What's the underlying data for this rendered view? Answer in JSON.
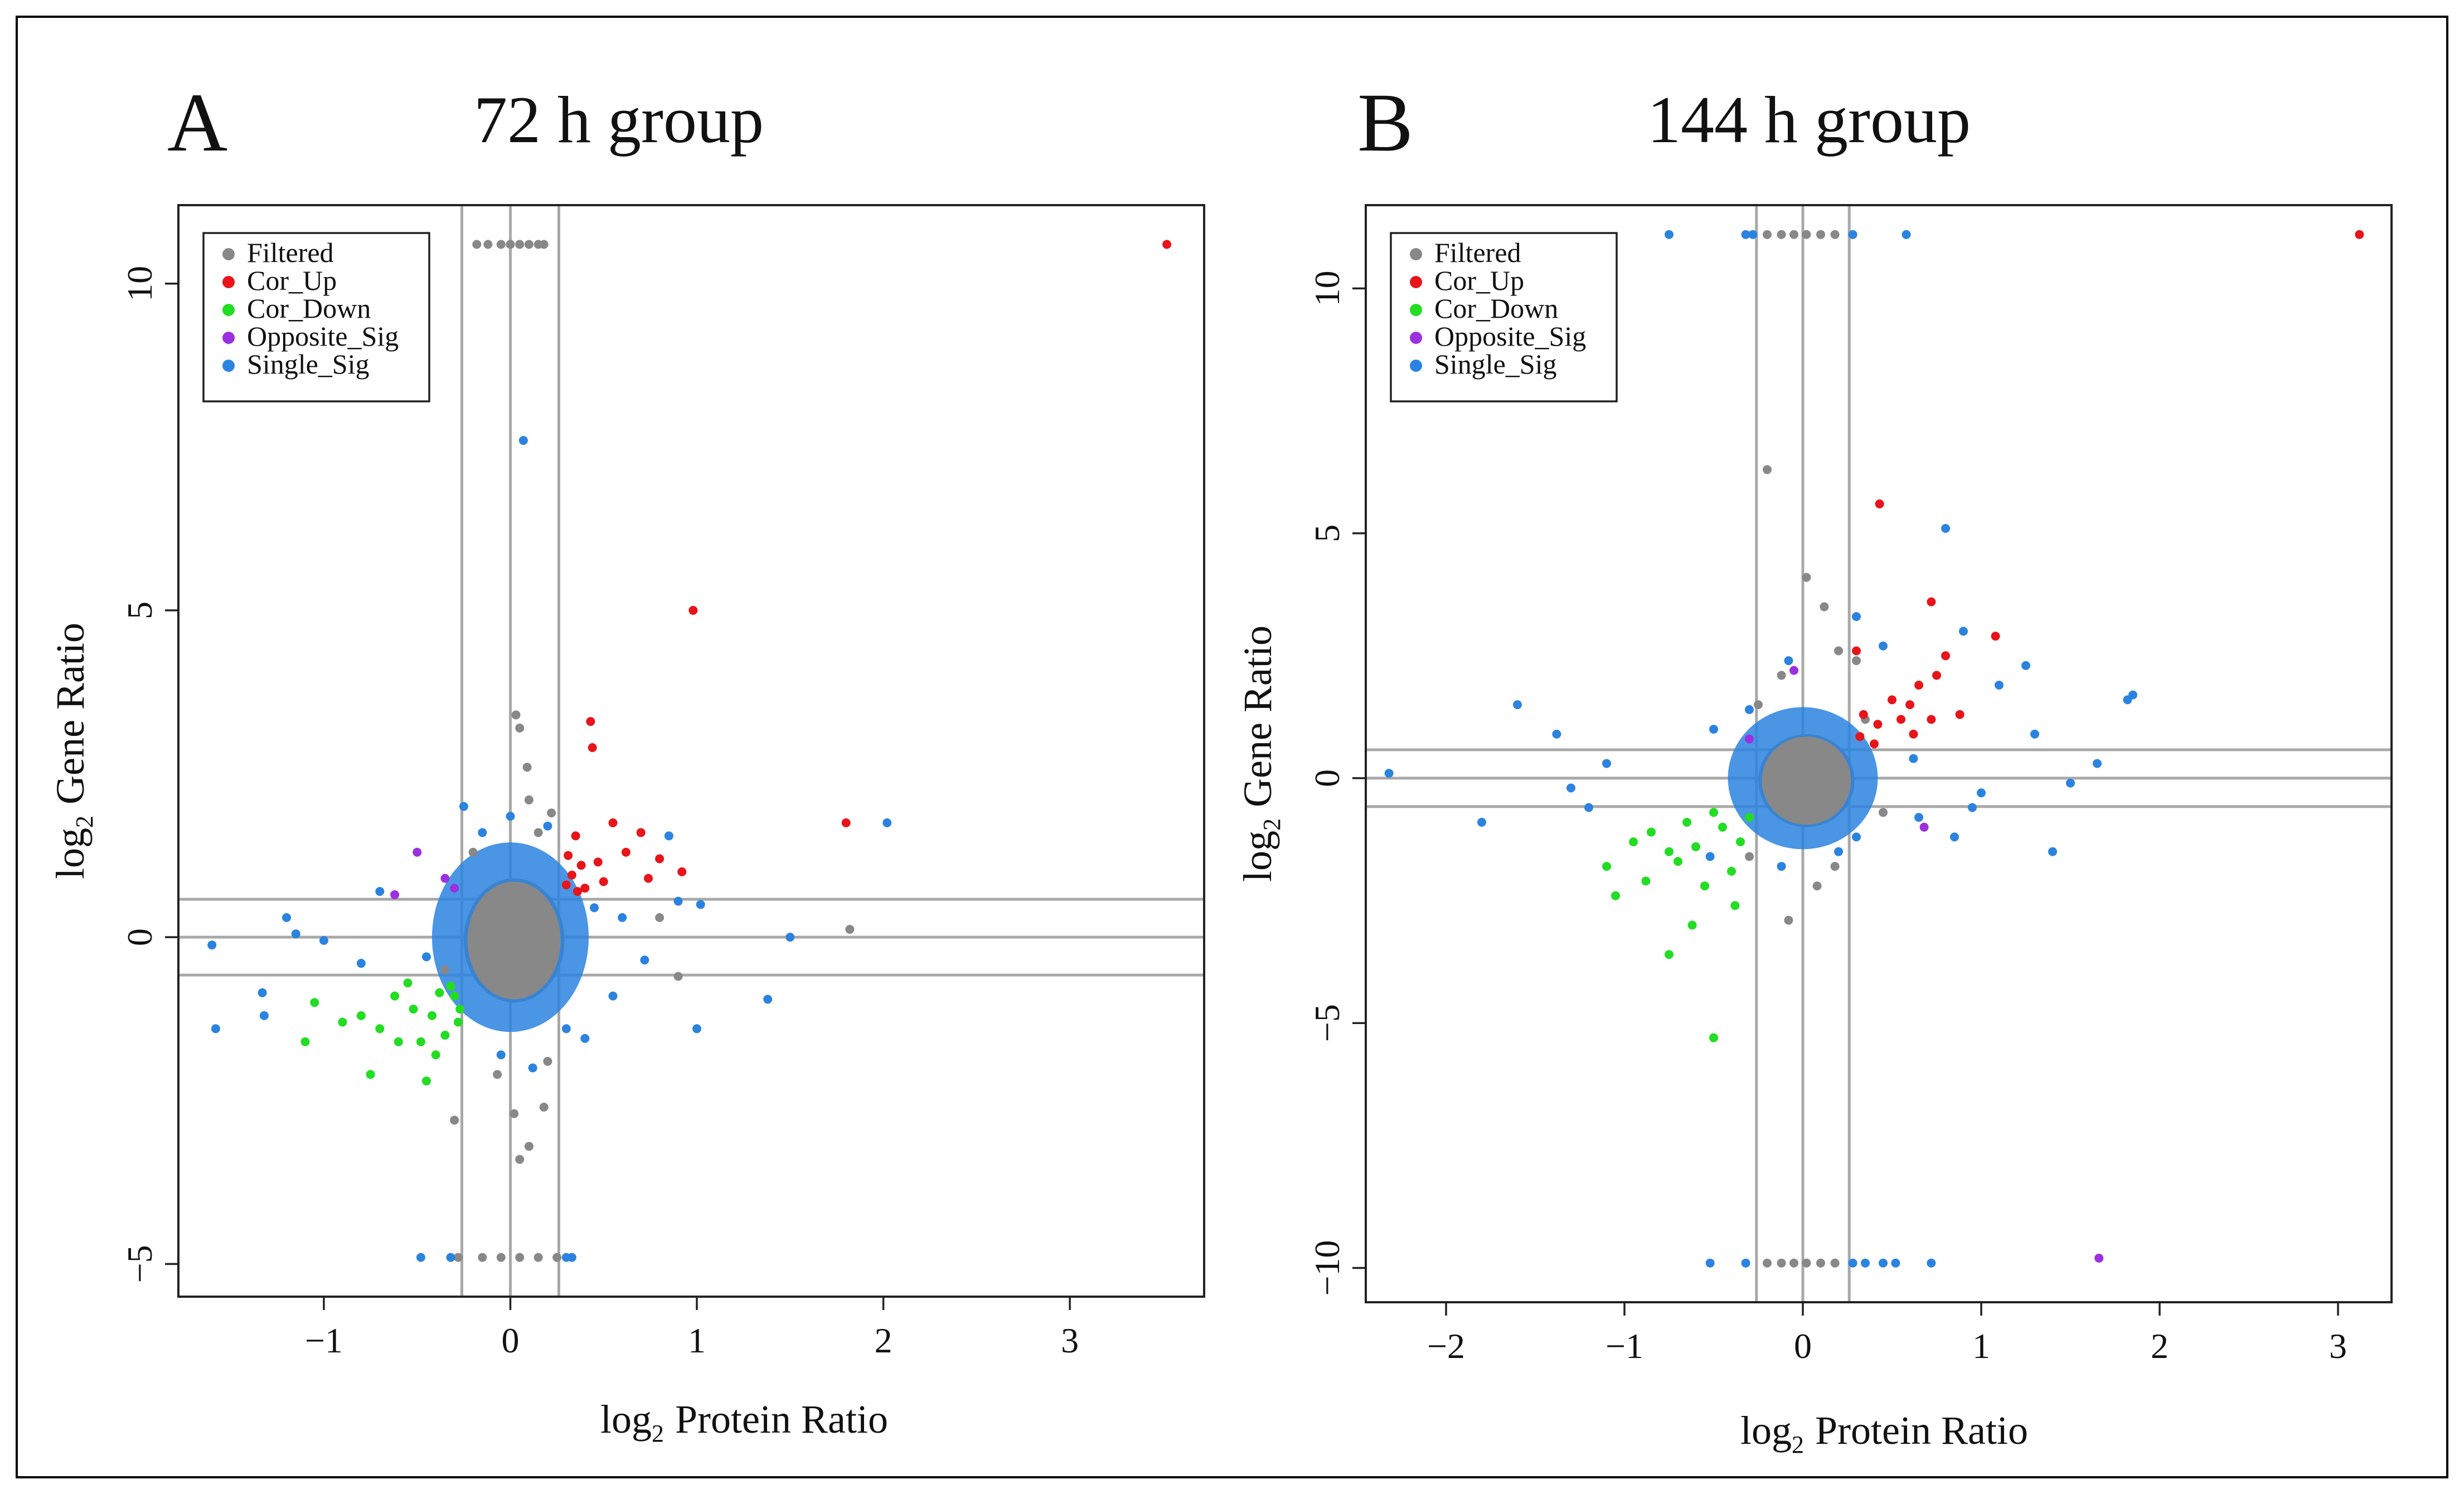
{
  "chart_data": [
    {
      "type": "scatter",
      "panel": "A",
      "title": "72 h group",
      "xlabel": "Protein Ratio",
      "ylabel": "Gene Ratio",
      "log_prefix": "log",
      "log_sub": "2",
      "xlim": [
        -1.78,
        3.72
      ],
      "ylim": [
        -5.5,
        11.2
      ],
      "xticks": [
        -1,
        0,
        1,
        2,
        3
      ],
      "yticks": [
        -5,
        0,
        5,
        10
      ],
      "xtick_labels": [
        "−1",
        "0",
        "1",
        "2",
        "3"
      ],
      "ytick_labels": [
        "−5",
        "0",
        "5",
        "10"
      ],
      "vlines": [
        -0.26,
        0,
        0.26
      ],
      "hlines": [
        -0.58,
        0,
        0.58
      ],
      "legend": {
        "position": "top-left",
        "entries": [
          {
            "label": "Filtered",
            "color": "#888888"
          },
          {
            "label": "Cor_Up",
            "color": "#e8141a"
          },
          {
            "label": "Cor_Down",
            "color": "#22dd22"
          },
          {
            "label": "Opposite_Sig",
            "color": "#9b30e0"
          },
          {
            "label": "Single_Sig",
            "color": "#2b83e0"
          }
        ]
      },
      "series": [
        {
          "name": "Filtered",
          "color": "#888888",
          "points": [
            [
              -0.18,
              10.6
            ],
            [
              -0.12,
              10.6
            ],
            [
              -0.05,
              10.6
            ],
            [
              0,
              10.6
            ],
            [
              0.05,
              10.6
            ],
            [
              0.1,
              10.6
            ],
            [
              0.15,
              10.6
            ],
            [
              0.18,
              10.6
            ],
            [
              -0.28,
              -4.9
            ],
            [
              -0.15,
              -4.9
            ],
            [
              -0.05,
              -4.9
            ],
            [
              0.05,
              -4.9
            ],
            [
              0.15,
              -4.9
            ],
            [
              0.25,
              -4.9
            ],
            [
              0.03,
              3.4
            ],
            [
              0.05,
              3.2
            ],
            [
              0.09,
              2.6
            ],
            [
              0.1,
              2.1
            ],
            [
              0.15,
              1.6
            ],
            [
              0.22,
              1.9
            ],
            [
              -0.07,
              -2.1
            ],
            [
              0.02,
              -2.7
            ],
            [
              0.1,
              -3.2
            ],
            [
              0.05,
              -3.4
            ],
            [
              0.18,
              -2.6
            ],
            [
              -0.3,
              -2.8
            ],
            [
              0.2,
              -1.9
            ],
            [
              1.82,
              0.12
            ],
            [
              0.9,
              -0.6
            ],
            [
              0.8,
              0.3
            ],
            [
              -0.35,
              -0.5
            ],
            [
              -0.2,
              1.3
            ]
          ]
        },
        {
          "name": "Cor_Up",
          "color": "#e8141a",
          "points": [
            [
              3.52,
              10.6
            ],
            [
              0.98,
              5.0
            ],
            [
              0.43,
              3.3
            ],
            [
              0.44,
              2.9
            ],
            [
              1.8,
              1.75
            ],
            [
              0.55,
              1.75
            ],
            [
              0.7,
              1.6
            ],
            [
              0.35,
              1.55
            ],
            [
              0.62,
              1.3
            ],
            [
              0.8,
              1.2
            ],
            [
              0.47,
              1.15
            ],
            [
              0.92,
              1.0
            ],
            [
              0.74,
              0.9
            ],
            [
              0.38,
              1.1
            ],
            [
              0.33,
              0.95
            ],
            [
              0.4,
              0.75
            ],
            [
              0.3,
              0.8
            ],
            [
              0.5,
              0.85
            ],
            [
              0.36,
              0.7
            ],
            [
              0.31,
              1.25
            ]
          ]
        },
        {
          "name": "Cor_Down",
          "color": "#22dd22",
          "points": [
            [
              -0.75,
              -2.1
            ],
            [
              -0.45,
              -2.2
            ],
            [
              -0.4,
              -1.8
            ],
            [
              -0.6,
              -1.6
            ],
            [
              -1.1,
              -1.6
            ],
            [
              -1.05,
              -1.0
            ],
            [
              -0.9,
              -1.3
            ],
            [
              -0.52,
              -1.1
            ],
            [
              -0.3,
              -0.9
            ],
            [
              -0.28,
              -1.3
            ],
            [
              -0.35,
              -1.5
            ],
            [
              -0.7,
              -1.4
            ],
            [
              -0.55,
              -0.7
            ],
            [
              -0.32,
              -0.75
            ],
            [
              -0.42,
              -1.2
            ],
            [
              -0.62,
              -0.9
            ],
            [
              -0.38,
              -0.85
            ],
            [
              -0.48,
              -1.6
            ],
            [
              -0.8,
              -1.2
            ],
            [
              -0.27,
              -1.1
            ]
          ]
        },
        {
          "name": "Opposite_Sig",
          "color": "#9b30e0",
          "points": [
            [
              -0.5,
              1.3
            ],
            [
              -0.62,
              0.65
            ],
            [
              -0.35,
              0.9
            ],
            [
              -0.3,
              0.75
            ]
          ]
        },
        {
          "name": "Single_Sig",
          "color": "#2b83e0",
          "points": [
            [
              0.07,
              7.6
            ],
            [
              -0.48,
              -4.9
            ],
            [
              -0.32,
              -4.9
            ],
            [
              0.3,
              -4.9
            ],
            [
              0.33,
              -4.9
            ],
            [
              2.02,
              1.75
            ],
            [
              1.5,
              0.0
            ],
            [
              1.38,
              -0.95
            ],
            [
              1.0,
              -1.4
            ],
            [
              1.02,
              0.5
            ],
            [
              -1.6,
              -0.12
            ],
            [
              -1.58,
              -1.4
            ],
            [
              -1.33,
              -0.85
            ],
            [
              -1.32,
              -1.2
            ],
            [
              -1.2,
              0.3
            ],
            [
              -1.15,
              0.05
            ],
            [
              -1.0,
              -0.05
            ],
            [
              0.9,
              0.55
            ],
            [
              0.85,
              1.55
            ],
            [
              0.6,
              0.3
            ],
            [
              0.72,
              -0.35
            ],
            [
              0.55,
              -0.9
            ],
            [
              0.4,
              -1.55
            ],
            [
              -0.7,
              0.7
            ],
            [
              -0.8,
              -0.4
            ],
            [
              -0.25,
              2.0
            ],
            [
              0.0,
              1.85
            ],
            [
              0.2,
              1.7
            ],
            [
              0.12,
              -2.0
            ],
            [
              -0.05,
              -1.8
            ],
            [
              -0.15,
              1.6
            ],
            [
              0.3,
              -1.4
            ],
            [
              -0.45,
              -0.3
            ],
            [
              0.45,
              0.45
            ]
          ]
        }
      ]
    },
    {
      "type": "scatter",
      "panel": "B",
      "title": "144 h group",
      "xlabel": "Protein Ratio",
      "ylabel": "Gene Ratio",
      "log_prefix": "log",
      "log_sub": "2",
      "xlim": [
        -2.45,
        3.3
      ],
      "ylim": [
        -10.7,
        11.7
      ],
      "xticks": [
        -2,
        -1,
        0,
        1,
        2,
        3
      ],
      "yticks": [
        -10,
        -5,
        0,
        5,
        10
      ],
      "xtick_labels": [
        "−2",
        "−1",
        "0",
        "1",
        "2",
        "3"
      ],
      "ytick_labels": [
        "−10",
        "−5",
        "0",
        "5",
        "10"
      ],
      "vlines": [
        -0.26,
        0,
        0.26
      ],
      "hlines": [
        -0.58,
        0,
        0.58
      ],
      "legend": {
        "position": "top-left",
        "entries": [
          {
            "label": "Filtered",
            "color": "#888888"
          },
          {
            "label": "Cor_Up",
            "color": "#e8141a"
          },
          {
            "label": "Cor_Down",
            "color": "#22dd22"
          },
          {
            "label": "Opposite_Sig",
            "color": "#9b30e0"
          },
          {
            "label": "Single_Sig",
            "color": "#2b83e0"
          }
        ]
      },
      "series": [
        {
          "name": "Filtered",
          "color": "#888888",
          "points": [
            [
              -0.2,
              11.1
            ],
            [
              -0.12,
              11.1
            ],
            [
              -0.05,
              11.1
            ],
            [
              0.02,
              11.1
            ],
            [
              0.1,
              11.1
            ],
            [
              0.18,
              11.1
            ],
            [
              -0.2,
              -9.9
            ],
            [
              -0.12,
              -9.9
            ],
            [
              -0.05,
              -9.9
            ],
            [
              0.02,
              -9.9
            ],
            [
              0.1,
              -9.9
            ],
            [
              0.18,
              -9.9
            ],
            [
              -0.2,
              6.3
            ],
            [
              0.02,
              4.1
            ],
            [
              0.12,
              3.5
            ],
            [
              0.2,
              2.6
            ],
            [
              -0.12,
              2.1
            ],
            [
              0.3,
              2.4
            ],
            [
              0.08,
              -2.2
            ],
            [
              -0.08,
              -2.9
            ],
            [
              0.18,
              -1.8
            ],
            [
              -0.3,
              -1.6
            ],
            [
              0.35,
              1.2
            ],
            [
              -0.25,
              1.5
            ],
            [
              0.45,
              -0.7
            ]
          ]
        },
        {
          "name": "Cor_Up",
          "color": "#e8141a",
          "points": [
            [
              3.12,
              11.1
            ],
            [
              0.43,
              5.6
            ],
            [
              0.72,
              3.6
            ],
            [
              1.08,
              2.9
            ],
            [
              0.8,
              2.5
            ],
            [
              0.65,
              1.9
            ],
            [
              0.75,
              2.1
            ],
            [
              0.88,
              1.3
            ],
            [
              0.5,
              1.6
            ],
            [
              0.34,
              1.3
            ],
            [
              0.62,
              0.9
            ],
            [
              0.42,
              1.1
            ],
            [
              0.55,
              1.2
            ],
            [
              0.32,
              0.85
            ],
            [
              0.72,
              1.2
            ],
            [
              0.4,
              0.7
            ],
            [
              0.3,
              2.6
            ],
            [
              0.6,
              1.5
            ]
          ]
        },
        {
          "name": "Cor_Down",
          "color": "#22dd22",
          "points": [
            [
              -0.5,
              -5.3
            ],
            [
              -0.75,
              -3.6
            ],
            [
              -0.62,
              -3.0
            ],
            [
              -1.05,
              -2.4
            ],
            [
              -0.88,
              -2.1
            ],
            [
              -1.1,
              -1.8
            ],
            [
              -0.95,
              -1.3
            ],
            [
              -0.7,
              -1.7
            ],
            [
              -0.55,
              -2.2
            ],
            [
              -0.4,
              -1.9
            ],
            [
              -0.85,
              -1.1
            ],
            [
              -0.6,
              -1.4
            ],
            [
              -0.45,
              -1.0
            ],
            [
              -0.35,
              -1.3
            ],
            [
              -0.5,
              -0.7
            ],
            [
              -0.3,
              -0.8
            ],
            [
              -0.65,
              -0.9
            ],
            [
              -0.38,
              -2.6
            ],
            [
              -0.75,
              -1.5
            ]
          ]
        },
        {
          "name": "Opposite_Sig",
          "color": "#9b30e0",
          "points": [
            [
              1.66,
              -9.8
            ],
            [
              -0.05,
              2.2
            ],
            [
              0.68,
              -1.0
            ],
            [
              -0.3,
              0.8
            ]
          ]
        },
        {
          "name": "Single_Sig",
          "color": "#2b83e0",
          "points": [
            [
              -0.75,
              11.1
            ],
            [
              -0.32,
              11.1
            ],
            [
              -0.28,
              11.1
            ],
            [
              0.28,
              11.1
            ],
            [
              0.58,
              11.1
            ],
            [
              -0.52,
              -9.9
            ],
            [
              -0.32,
              -9.9
            ],
            [
              0.28,
              -9.9
            ],
            [
              0.35,
              -9.9
            ],
            [
              0.45,
              -9.9
            ],
            [
              0.52,
              -9.9
            ],
            [
              0.72,
              -9.9
            ],
            [
              0.8,
              5.1
            ],
            [
              -2.32,
              0.1
            ],
            [
              -1.8,
              -0.9
            ],
            [
              -1.6,
              1.5
            ],
            [
              -1.38,
              0.9
            ],
            [
              -1.3,
              -0.2
            ],
            [
              -1.2,
              -0.6
            ],
            [
              -1.1,
              0.3
            ],
            [
              1.85,
              1.7
            ],
            [
              1.82,
              1.6
            ],
            [
              1.65,
              0.3
            ],
            [
              1.4,
              -1.5
            ],
            [
              1.25,
              2.3
            ],
            [
              1.3,
              0.9
            ],
            [
              1.5,
              -0.1
            ],
            [
              1.0,
              -0.3
            ],
            [
              0.95,
              -0.6
            ],
            [
              0.9,
              3.0
            ],
            [
              1.1,
              1.9
            ],
            [
              0.85,
              -1.2
            ],
            [
              0.3,
              3.3
            ],
            [
              -0.08,
              2.4
            ],
            [
              0.45,
              2.7
            ],
            [
              0.62,
              0.4
            ],
            [
              -0.52,
              -1.6
            ],
            [
              -0.12,
              -1.8
            ],
            [
              0.2,
              -1.5
            ],
            [
              -0.5,
              1.0
            ],
            [
              0.3,
              -1.2
            ],
            [
              0.65,
              -0.8
            ],
            [
              -0.3,
              1.4
            ]
          ]
        }
      ]
    }
  ]
}
